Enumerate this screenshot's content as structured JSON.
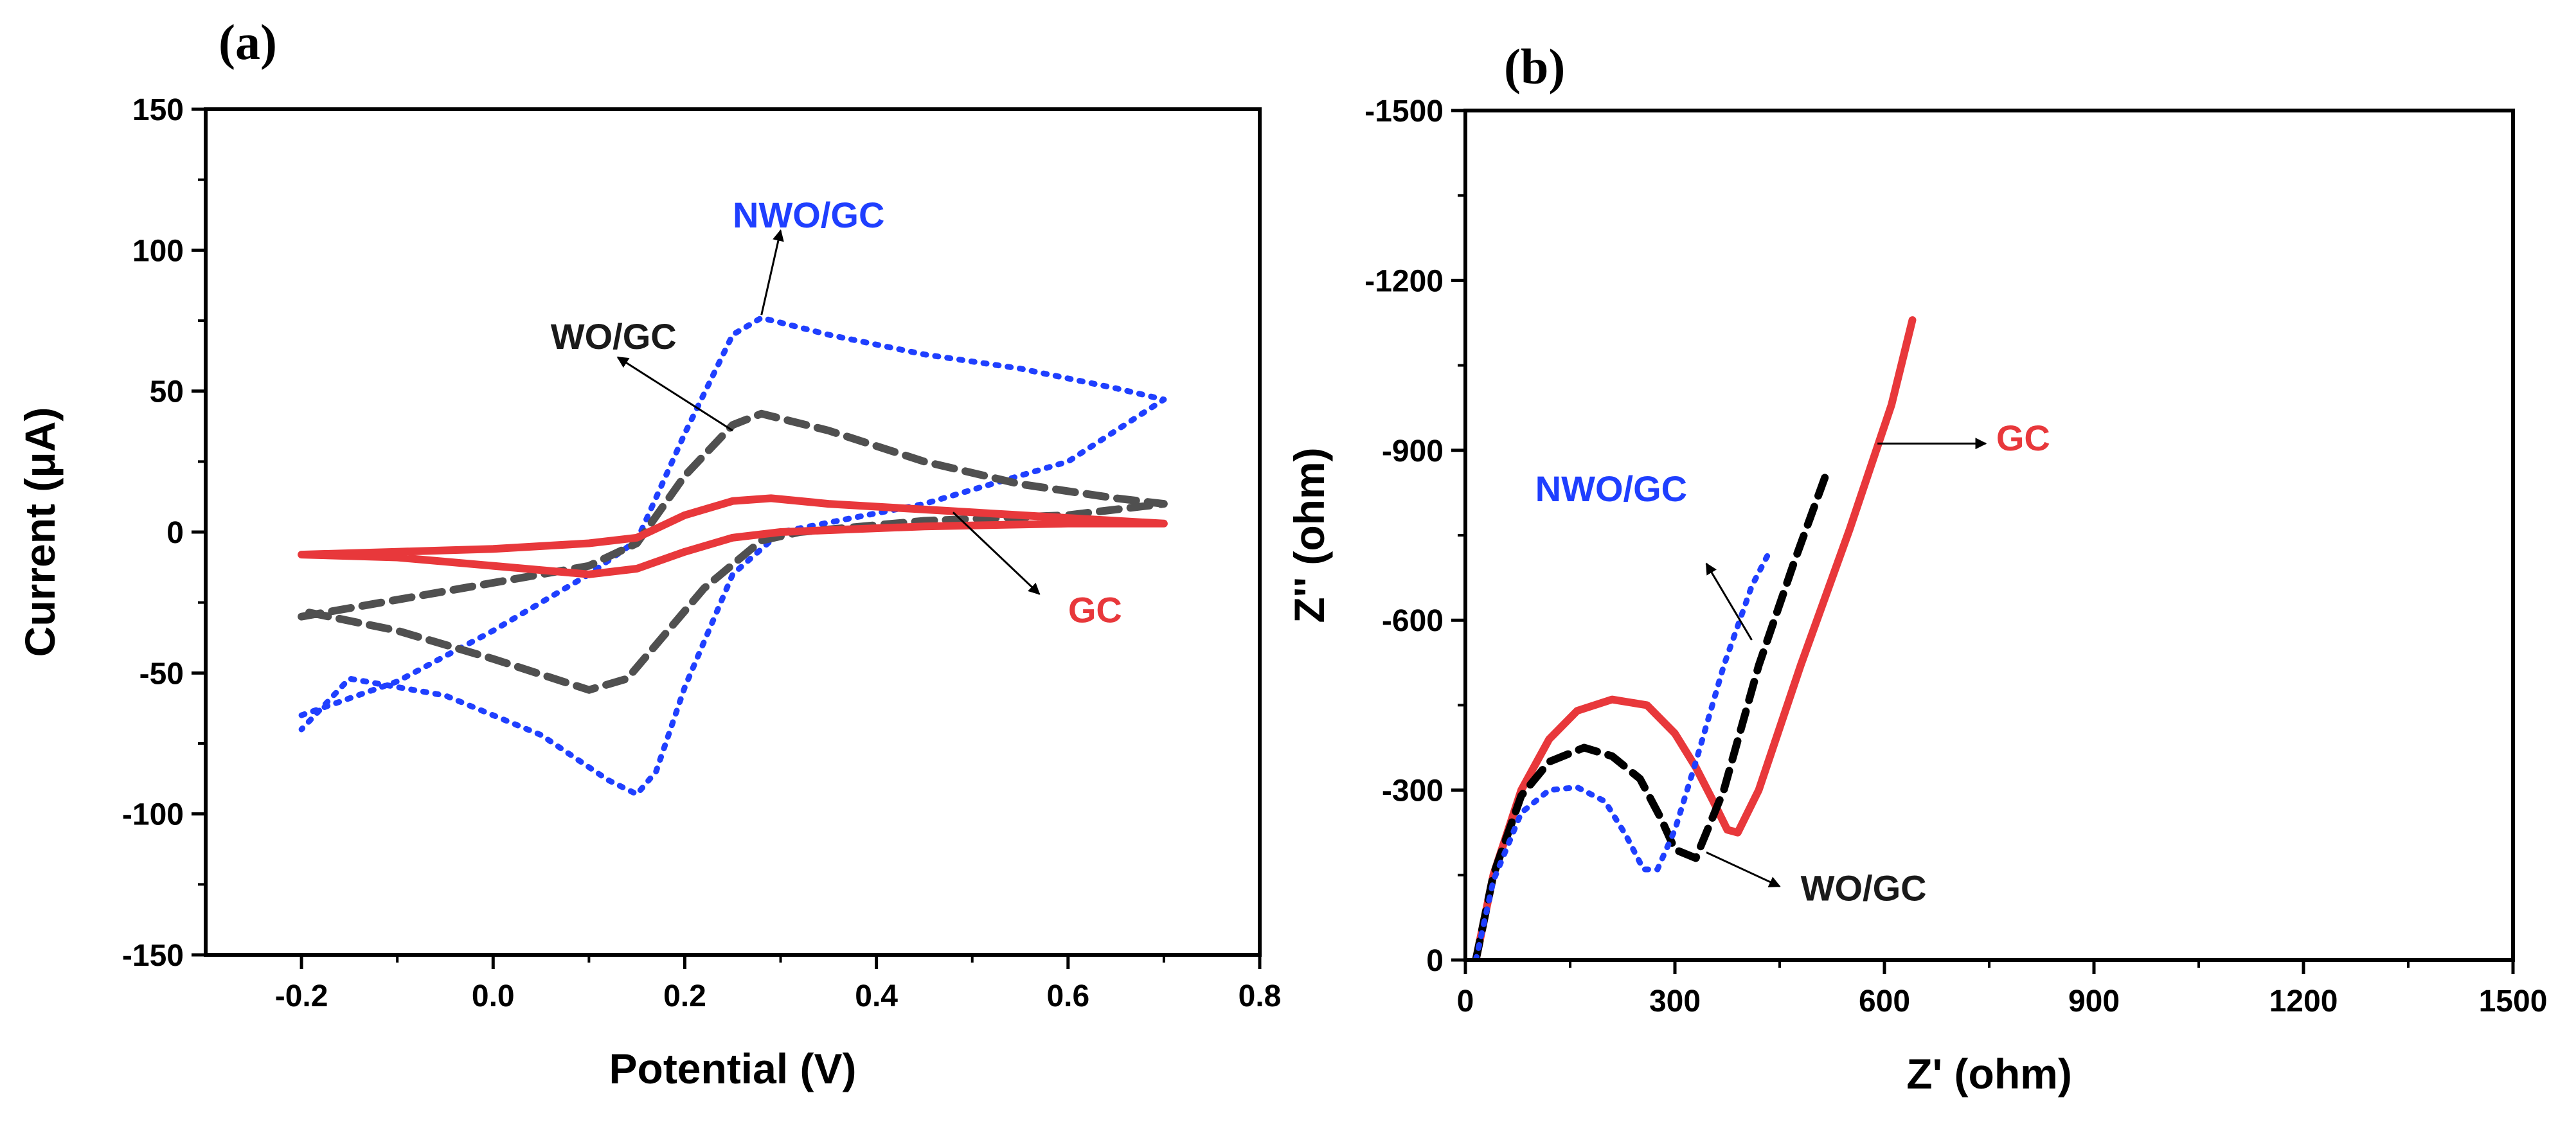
{
  "figure": {
    "panel_a_label": "(a)",
    "panel_b_label": "(b)"
  },
  "chart_data": [
    {
      "type": "line",
      "panel": "(a)",
      "title": "",
      "xlabel": "Potential (V)",
      "ylabel": "Current (μA)",
      "xlim": [
        -0.3,
        0.8
      ],
      "ylim": [
        -150,
        150
      ],
      "xticks": [
        -0.2,
        0.0,
        0.2,
        0.4,
        0.6,
        0.8
      ],
      "xtick_labels": [
        "-0.2",
        "0.0",
        "0.2",
        "0.4",
        "0.6",
        "0.8"
      ],
      "yticks": [
        -150,
        -100,
        -50,
        0,
        50,
        100,
        150
      ],
      "ytick_labels": [
        "-150",
        "-100",
        "-50",
        "0",
        "50",
        "100",
        "150"
      ],
      "grid": false,
      "legend": "none",
      "series": [
        {
          "name": "NWO/GC",
          "color": "#1f3fff",
          "style": "dotted",
          "x": [
            -0.2,
            -0.1,
            0.0,
            0.1,
            0.15,
            0.2,
            0.25,
            0.28,
            0.35,
            0.45,
            0.55,
            0.65,
            0.7,
            0.6,
            0.45,
            0.3,
            0.25,
            0.2,
            0.17,
            0.15,
            0.12,
            0.05,
            -0.05,
            -0.15,
            -0.2
          ],
          "y": [
            -65,
            -53,
            -35,
            -15,
            -3,
            35,
            70,
            76,
            70,
            63,
            58,
            51,
            47,
            25,
            10,
            0,
            -15,
            -55,
            -85,
            -93,
            -88,
            -72,
            -58,
            -52,
            -70
          ]
        },
        {
          "name": "WO/GC",
          "color": "#505050",
          "style": "dashed",
          "x": [
            -0.2,
            -0.1,
            0.0,
            0.1,
            0.15,
            0.2,
            0.25,
            0.28,
            0.35,
            0.45,
            0.55,
            0.65,
            0.7,
            0.6,
            0.45,
            0.32,
            0.28,
            0.22,
            0.17,
            0.14,
            0.1,
            0.0,
            -0.1,
            -0.2
          ],
          "y": [
            -30,
            -24,
            -18,
            -12,
            -4,
            20,
            38,
            42,
            36,
            25,
            17,
            12,
            10,
            6,
            4,
            0,
            -3,
            -20,
            -40,
            -52,
            -56,
            -45,
            -35,
            -28
          ]
        },
        {
          "name": "GC",
          "color": "#e8383b",
          "style": "solid",
          "x": [
            -0.2,
            -0.1,
            0.0,
            0.1,
            0.15,
            0.2,
            0.25,
            0.29,
            0.35,
            0.45,
            0.55,
            0.65,
            0.7,
            0.6,
            0.45,
            0.3,
            0.25,
            0.2,
            0.15,
            0.1,
            0.0,
            -0.1,
            -0.2
          ],
          "y": [
            -8,
            -7,
            -6,
            -4,
            -2,
            6,
            11,
            12,
            10,
            8,
            6,
            4,
            3,
            3,
            2,
            0,
            -2,
            -7,
            -13,
            -15,
            -12,
            -9,
            -8
          ]
        }
      ],
      "annotations": [
        {
          "text": "NWO/GC",
          "color": "#1f3fff",
          "x": 0.25,
          "y": 108,
          "arrow_from": [
            0.28,
            77
          ],
          "arrow_to": [
            0.3,
            107
          ]
        },
        {
          "text": "WO/GC",
          "color": "#1a1a1a",
          "x": 0.06,
          "y": 65,
          "arrow_from": [
            0.25,
            36
          ],
          "arrow_to": [
            0.13,
            62
          ]
        },
        {
          "text": "GC",
          "color": "#e8383b",
          "x": 0.6,
          "y": -32,
          "arrow_from": [
            0.48,
            7
          ],
          "arrow_to": [
            0.57,
            -22
          ]
        }
      ]
    },
    {
      "type": "line",
      "panel": "(b)",
      "title": "",
      "xlabel": "Z' (ohm)",
      "ylabel": "Z'' (ohm)",
      "xlim": [
        0,
        1500
      ],
      "ylim": [
        0,
        -1500
      ],
      "xticks": [
        0,
        300,
        600,
        900,
        1200,
        1500
      ],
      "xtick_labels": [
        "0",
        "300",
        "600",
        "900",
        "1200",
        "1500"
      ],
      "yticks": [
        0,
        -300,
        -600,
        -900,
        -1200,
        -1500
      ],
      "ytick_labels": [
        "0",
        "-300",
        "-600",
        "-900",
        "-1200",
        "-1500"
      ],
      "grid": false,
      "legend": "none",
      "series": [
        {
          "name": "GC",
          "color": "#e8383b",
          "style": "solid",
          "x": [
            15,
            40,
            80,
            120,
            160,
            210,
            260,
            300,
            330,
            355,
            375,
            390,
            420,
            480,
            550,
            610,
            640
          ],
          "y": [
            0,
            -150,
            -300,
            -390,
            -440,
            -460,
            -450,
            -400,
            -340,
            -280,
            -230,
            -225,
            -300,
            -520,
            -760,
            -980,
            -1130
          ]
        },
        {
          "name": "WO/GC",
          "color": "#000000",
          "style": "dashed",
          "x": [
            15,
            40,
            80,
            120,
            170,
            210,
            250,
            280,
            300,
            330,
            370,
            420,
            470,
            520
          ],
          "y": [
            0,
            -150,
            -290,
            -350,
            -375,
            -360,
            -320,
            -250,
            -195,
            -180,
            -300,
            -520,
            -700,
            -870
          ]
        },
        {
          "name": "NWO/GC",
          "color": "#1f3fff",
          "style": "dotted",
          "x": [
            15,
            40,
            80,
            120,
            160,
            200,
            230,
            255,
            275,
            300,
            330,
            370,
            410,
            435
          ],
          "y": [
            0,
            -140,
            -260,
            -300,
            -305,
            -280,
            -220,
            -160,
            -160,
            -230,
            -350,
            -520,
            -660,
            -720
          ]
        }
      ],
      "annotations": [
        {
          "text": "GC",
          "color": "#e8383b",
          "x": 760,
          "y": -900,
          "arrow_from": [
            590,
            -912
          ],
          "arrow_to": [
            745,
            -912
          ]
        },
        {
          "text": "NWO/GC",
          "color": "#1f3fff",
          "x": 100,
          "y": -810,
          "arrow_from": [
            410,
            -565
          ],
          "arrow_to": [
            345,
            -700
          ]
        },
        {
          "text": "WO/GC",
          "color": "#1a1a1a",
          "x": 480,
          "y": -105,
          "arrow_from": [
            345,
            -190
          ],
          "arrow_to": [
            450,
            -130
          ]
        }
      ]
    }
  ]
}
